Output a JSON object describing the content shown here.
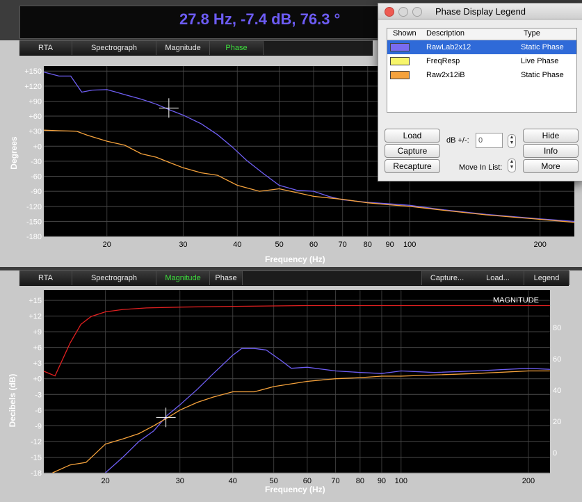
{
  "readout": "27.8 Hz, -7.4 dB, 76.3 °",
  "top_panel": {
    "tabs": [
      {
        "label": "RTA",
        "active": false
      },
      {
        "label": "Spectrograph",
        "active": false
      },
      {
        "label": "Magnitude",
        "active": false
      },
      {
        "label": "Phase",
        "active": true
      }
    ]
  },
  "bottom_panel": {
    "tabs": [
      {
        "label": "RTA",
        "active": false
      },
      {
        "label": "Spectrograph",
        "active": false
      },
      {
        "label": "Magnitude",
        "active": true
      },
      {
        "label": "Phase",
        "active": false
      }
    ],
    "right_buttons": [
      "Capture...",
      "Load...",
      "Legend"
    ],
    "overlay_label": "MAGNITUDE"
  },
  "legend_window": {
    "title": "Phase Display Legend",
    "columns": [
      "Shown",
      "Description",
      "Type"
    ],
    "rows": [
      {
        "description": "RawLab2x12",
        "type": "Static Phase",
        "color": "#7a6cf0",
        "selected": true
      },
      {
        "description": "FreqResp",
        "type": "Live Phase",
        "color": "#f7f56a",
        "selected": false
      },
      {
        "description": "Raw2x12iB",
        "type": "Static Phase",
        "color": "#f5a23c",
        "selected": false
      }
    ],
    "buttons_left": [
      "Load",
      "Capture",
      "Recapture"
    ],
    "buttons_right": [
      "Hide",
      "Info",
      "More"
    ],
    "db_label": "dB +/-:",
    "db_value": "0",
    "move_label": "Move In List:"
  },
  "chart_data": [
    {
      "type": "line",
      "xlabel": "Frequency (Hz)",
      "ylabel": "Degrees",
      "xscale": "log",
      "xlim": [
        14.3,
        240
      ],
      "ylim": [
        -180,
        160
      ],
      "x_ticks": [
        20,
        30,
        40,
        50,
        60,
        70,
        80,
        90,
        100,
        200
      ],
      "y_ticks": [
        150,
        120,
        90,
        60,
        30,
        0,
        -30,
        -60,
        -90,
        -120,
        -150,
        -180
      ],
      "y_tick_labels": [
        "+150",
        "+120",
        "+90",
        "+60",
        "+30",
        "+0",
        "-30",
        "-60",
        "-90",
        "-120",
        "-150",
        "-180"
      ],
      "grid": true,
      "cursor": {
        "x": 27.8,
        "y": 76.3
      },
      "series": [
        {
          "name": "RawLab2x12",
          "color": "#6e5ef2",
          "x": [
            14.3,
            15.5,
            16.5,
            17.5,
            18.5,
            20,
            21,
            22,
            24,
            26,
            28,
            30,
            33,
            36,
            39,
            42,
            46,
            50,
            55,
            60,
            65,
            70,
            80,
            90,
            100,
            120,
            150,
            200,
            240
          ],
          "y": [
            148,
            140,
            140,
            108,
            112,
            113,
            108,
            103,
            94,
            84,
            72,
            62,
            45,
            23,
            -2,
            -28,
            -55,
            -78,
            -88,
            -90,
            -100,
            -107,
            -112,
            -115,
            -118,
            -127,
            -136,
            -145,
            -150
          ]
        },
        {
          "name": "Raw2x12iB",
          "color": "#f5a23c",
          "x": [
            14.3,
            15.5,
            17,
            18,
            20,
            22,
            24,
            26,
            28,
            30,
            33,
            36,
            40,
            45,
            50,
            60,
            70,
            80,
            90,
            100,
            120,
            150,
            200,
            240
          ],
          "y": [
            32,
            31,
            30,
            22,
            10,
            2,
            -15,
            -22,
            -33,
            -43,
            -53,
            -58,
            -78,
            -90,
            -85,
            -100,
            -106,
            -113,
            -117,
            -120,
            -128,
            -137,
            -146,
            -152
          ]
        }
      ]
    },
    {
      "type": "line",
      "xlabel": "Frequency (Hz)",
      "ylabel": "Decibels (dB)",
      "xscale": "log",
      "xlim": [
        14.3,
        225
      ],
      "ylim": [
        -18,
        17
      ],
      "x_ticks": [
        20,
        30,
        40,
        50,
        60,
        70,
        80,
        90,
        100,
        200
      ],
      "y_ticks": [
        15,
        12,
        9,
        6,
        3,
        0,
        -3,
        -6,
        -9,
        -12,
        -15,
        -18
      ],
      "y_tick_labels": [
        "+15",
        "+12",
        "+9",
        "+6",
        "+3",
        "+0",
        "-3",
        "-6",
        "-9",
        "-12",
        "-15",
        "-18"
      ],
      "y2_ticks": [
        0,
        20,
        40,
        60,
        80
      ],
      "grid": true,
      "cursor": {
        "x": 27.8,
        "y": -7.4
      },
      "series": [
        {
          "name": "RawLab2x12",
          "color": "#6e5ef2",
          "x": [
            20,
            22,
            24,
            26,
            28,
            30,
            33,
            36,
            40,
            42,
            45,
            48,
            52,
            55,
            60,
            70,
            80,
            90,
            100,
            120,
            150,
            200,
            225
          ],
          "y": [
            -18,
            -15,
            -12,
            -10,
            -7,
            -5,
            -2,
            1,
            4.5,
            5.8,
            5.8,
            5.5,
            3.5,
            2,
            2.2,
            1.5,
            1.2,
            1,
            1.5,
            1.2,
            1.5,
            2,
            1.8
          ]
        },
        {
          "name": "Raw2x12iB",
          "color": "#f5a23c",
          "x": [
            15,
            16.5,
            18,
            20,
            22,
            24,
            26,
            28,
            30,
            33,
            36,
            40,
            45,
            50,
            60,
            70,
            80,
            90,
            100,
            150,
            200,
            225
          ],
          "y": [
            -18,
            -16.5,
            -16,
            -12.5,
            -11.5,
            -10.5,
            -9,
            -7.5,
            -6,
            -4.5,
            -3.5,
            -2.5,
            -2.5,
            -1.5,
            -0.5,
            0,
            0.2,
            0.5,
            0.5,
            1,
            1.5,
            1.5
          ]
        },
        {
          "name": "",
          "color": "#e02020",
          "y_axis": "right",
          "x": [
            14.3,
            15.2,
            16.5,
            17.5,
            18.5,
            20,
            22,
            25,
            30,
            40,
            60,
            100,
            225
          ],
          "y": [
            52,
            49,
            70,
            82,
            87,
            90,
            91.5,
            92.5,
            93,
            93.5,
            94,
            94,
            94
          ]
        }
      ]
    }
  ]
}
